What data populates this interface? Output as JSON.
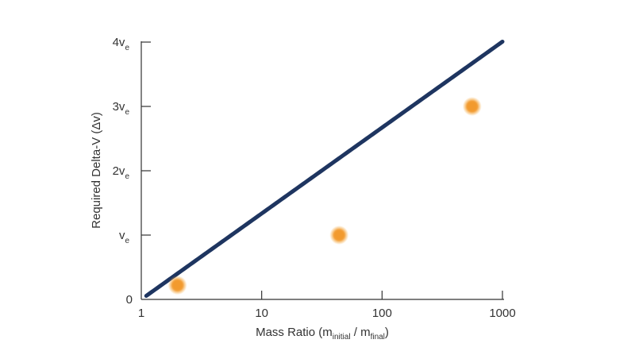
{
  "chart_data": {
    "type": "line",
    "xscale": "log",
    "xlim": [
      1,
      1000
    ],
    "ylim": [
      0,
      4
    ],
    "x_ticks": [
      {
        "value": 1,
        "label": "1"
      },
      {
        "value": 10,
        "label": "10"
      },
      {
        "value": 100,
        "label": "100"
      },
      {
        "value": 1000,
        "label": "1000"
      }
    ],
    "y_ticks": [
      {
        "value": 0,
        "label": "0",
        "sub": ""
      },
      {
        "value": 1,
        "label": "v",
        "sub": "e"
      },
      {
        "value": 2,
        "label": "2v",
        "sub": "e"
      },
      {
        "value": 3,
        "label": "3v",
        "sub": "e"
      },
      {
        "value": 4,
        "label": "4v",
        "sub": "e"
      }
    ],
    "xlabel": {
      "main": "Mass Ratio (m",
      "sub1": "initial",
      "mid": " / m",
      "sub2": "final",
      "end": ")"
    },
    "ylabel": "Required Delta-V (Δv)",
    "series": [
      {
        "function": "ln",
        "x_start": 1.1,
        "x_end": 1000
      }
    ],
    "highlight_points": [
      {
        "x": 2,
        "y": 0.22
      },
      {
        "x": 44,
        "y": 1.0
      },
      {
        "x": 560,
        "y": 3.0
      }
    ],
    "line_color": "#1e3560",
    "point_color": "#f29a2e",
    "grid": false
  }
}
